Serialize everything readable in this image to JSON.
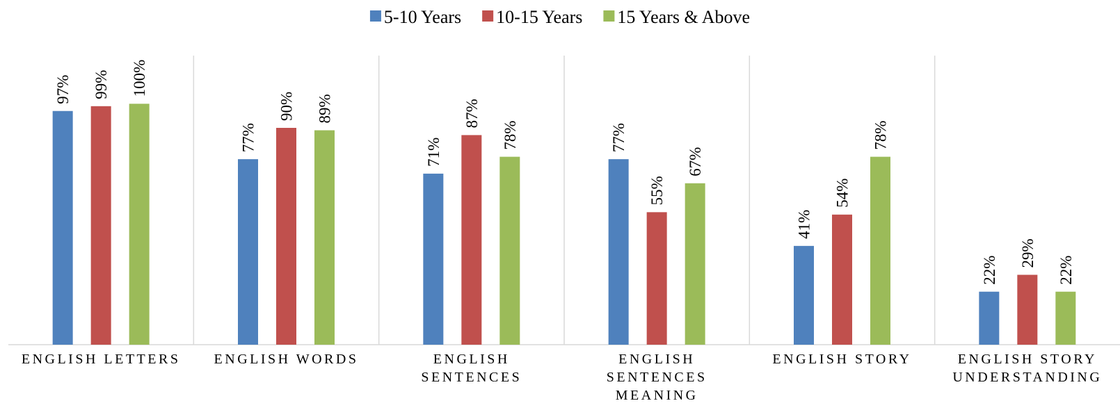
{
  "chart_data": {
    "type": "bar",
    "categories": [
      "ENGLISH LETTERS",
      "ENGLISH WORDS",
      "ENGLISH SENTENCES",
      "ENGLISH SENTENCES MEANING",
      "ENGLISH STORY",
      "ENGLISH STORY UNDERSTANDING"
    ],
    "series": [
      {
        "name": "5-10 Years",
        "color": "#4f81bd",
        "values": [
          97,
          77,
          71,
          77,
          41,
          22
        ],
        "value_labels": [
          "97%",
          "77%",
          "71%",
          "77%",
          "41%",
          "22%"
        ]
      },
      {
        "name": "10-15 Years",
        "color": "#c0504d",
        "values": [
          99,
          90,
          87,
          55,
          54,
          29
        ],
        "value_labels": [
          "99%",
          "90%",
          "87%",
          "55%",
          "54%",
          "29%"
        ]
      },
      {
        "name": "15 Years & Above",
        "color": "#9bbb59",
        "values": [
          100,
          89,
          78,
          67,
          78,
          22
        ],
        "value_labels": [
          "100%",
          "89%",
          "78%",
          "67%",
          "78%",
          "22%"
        ]
      }
    ],
    "ylim": [
      0,
      120
    ],
    "legend": "top"
  }
}
